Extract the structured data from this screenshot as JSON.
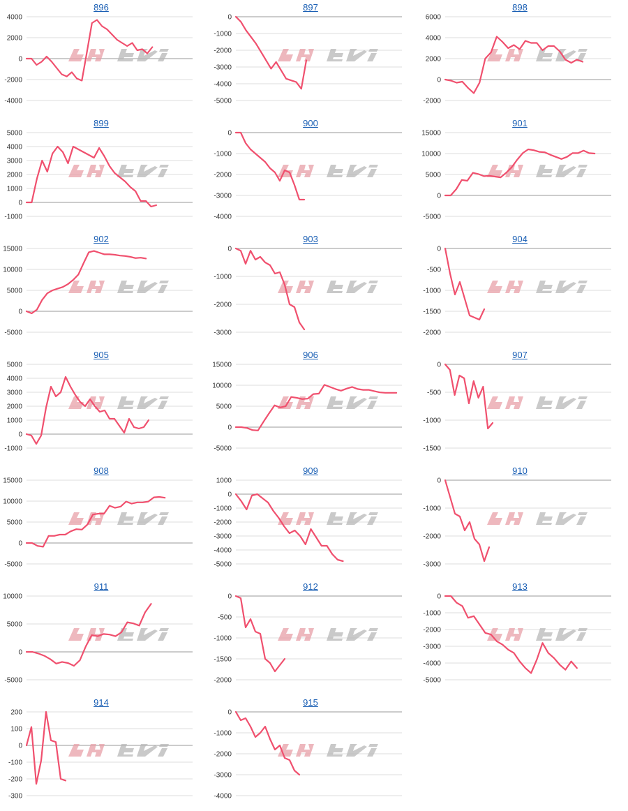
{
  "colors": {
    "line": "#f0506e",
    "grid": "#dddddd",
    "zero": "#999999",
    "title": "#1a5fb4",
    "watermark": "#e8a0a8",
    "watermark2": "#b8b8b8"
  },
  "chart_data": [
    {
      "title": "896",
      "type": "line",
      "yticks": [
        "4000",
        "2000",
        "0",
        "-2000",
        "-4000"
      ],
      "ylim": [
        -4000,
        4000
      ],
      "n": 34,
      "values": [
        0,
        0,
        -600,
        -300,
        200,
        -300,
        -900,
        -1500,
        -1700,
        -1300,
        -1900,
        -2100,
        600,
        3400,
        3700,
        3100,
        2800,
        2300,
        1800,
        1500,
        1200,
        1500,
        800,
        900,
        500,
        1100
      ]
    },
    {
      "title": "897",
      "type": "line",
      "yticks": [
        "0",
        "-1000",
        "-2000",
        "-3000",
        "-4000",
        "-5000"
      ],
      "ylim": [
        -5000,
        0
      ],
      "n": 34,
      "values": [
        0,
        -300,
        -800,
        -1200,
        -1600,
        -2100,
        -2600,
        -3100,
        -2700,
        -3200,
        -3700,
        -3800,
        -3900,
        -4300,
        -2600
      ]
    },
    {
      "title": "898",
      "type": "line",
      "yticks": [
        "6000",
        "4000",
        "2000",
        "0",
        "-2000"
      ],
      "ylim": [
        -2000,
        6000
      ],
      "n": 30,
      "values": [
        0,
        -100,
        -300,
        -200,
        -800,
        -1300,
        -300,
        2000,
        2600,
        4100,
        3600,
        3000,
        3300,
        2900,
        3700,
        3500,
        3500,
        2800,
        3200,
        3200,
        2700,
        1900,
        1600,
        1900,
        1700
      ]
    },
    {
      "title": "899",
      "type": "line",
      "yticks": [
        "5000",
        "4000",
        "3000",
        "2000",
        "1000",
        "0",
        "-1000"
      ],
      "ylim": [
        -1000,
        5000
      ],
      "n": 33,
      "values": [
        0,
        0,
        1700,
        3000,
        2200,
        3500,
        4000,
        3600,
        2800,
        4000,
        3800,
        3600,
        3400,
        3200,
        3900,
        3300,
        2600,
        2100,
        1800,
        1500,
        1100,
        800,
        100,
        100,
        -300,
        -200
      ]
    },
    {
      "title": "900",
      "type": "line",
      "yticks": [
        "0",
        "-1000",
        "-2000",
        "-3000",
        "-4000"
      ],
      "ylim": [
        -4000,
        0
      ],
      "n": 35,
      "values": [
        0,
        0,
        -500,
        -800,
        -1000,
        -1200,
        -1400,
        -1700,
        -1900,
        -2300,
        -1800,
        -1900,
        -2500,
        -3200,
        -3200
      ]
    },
    {
      "title": "901",
      "type": "line",
      "yticks": [
        "15000",
        "10000",
        "5000",
        "0",
        "-5000"
      ],
      "ylim": [
        -5000,
        15000
      ],
      "n": 31,
      "values": [
        0,
        0,
        1500,
        3700,
        3500,
        5400,
        5100,
        4600,
        4700,
        4500,
        4300,
        5400,
        6700,
        8500,
        10100,
        11000,
        10800,
        10400,
        10300,
        9700,
        9200,
        8700,
        9200,
        10100,
        10100,
        10700,
        10100,
        10000
      ]
    },
    {
      "title": "902",
      "type": "line",
      "yticks": [
        "15000",
        "10000",
        "5000",
        "0",
        "-5000"
      ],
      "ylim": [
        -5000,
        15000
      ],
      "n": 33,
      "values": [
        0,
        -500,
        400,
        2700,
        4300,
        5000,
        5400,
        5800,
        6500,
        7500,
        8800,
        11500,
        14100,
        14400,
        14000,
        13600,
        13600,
        13500,
        13300,
        13200,
        13000,
        12700,
        12800,
        12600
      ]
    },
    {
      "title": "903",
      "type": "line",
      "yticks": [
        "0",
        "-1000",
        "-2000",
        "-3000"
      ],
      "ylim": [
        -3000,
        0
      ],
      "n": 35,
      "values": [
        0,
        -80,
        -550,
        -80,
        -400,
        -300,
        -500,
        -600,
        -900,
        -850,
        -1300,
        -2000,
        -2100,
        -2650,
        -2900
      ]
    },
    {
      "title": "904",
      "type": "line",
      "yticks": [
        "0",
        "-500",
        "-1000",
        "-1500",
        "-2000"
      ],
      "ylim": [
        -2000,
        0
      ],
      "n": 35,
      "values": [
        0,
        -600,
        -1100,
        -800,
        -1200,
        -1600,
        -1650,
        -1700,
        -1450
      ]
    },
    {
      "title": "905",
      "type": "line",
      "yticks": [
        "5000",
        "4000",
        "3000",
        "2000",
        "1000",
        "0",
        "-1000"
      ],
      "ylim": [
        -1000,
        5000
      ],
      "n": 35,
      "values": [
        0,
        -100,
        -700,
        -100,
        1900,
        3400,
        2700,
        3000,
        4100,
        3400,
        2800,
        2300,
        2000,
        2500,
        2000,
        1600,
        1700,
        1100,
        1100,
        600,
        100,
        1100,
        500,
        400,
        500,
        1000
      ]
    },
    {
      "title": "906",
      "type": "line",
      "yticks": [
        "15000",
        "10000",
        "5000",
        "0",
        "-5000"
      ],
      "ylim": [
        -5000,
        15000
      ],
      "n": 31,
      "values": [
        0,
        0,
        -200,
        -700,
        -800,
        1300,
        3300,
        5200,
        4700,
        5000,
        7200,
        7000,
        6700,
        6800,
        7900,
        8000,
        10100,
        9600,
        9100,
        8700,
        9200,
        9600,
        9100,
        8900,
        8900,
        8600,
        8300,
        8200,
        8200,
        8200
      ]
    },
    {
      "title": "907",
      "type": "line",
      "yticks": [
        "0",
        "-500",
        "-1000",
        "-1500"
      ],
      "ylim": [
        -1500,
        0
      ],
      "n": 36,
      "values": [
        0,
        -100,
        -550,
        -200,
        -250,
        -700,
        -300,
        -600,
        -400,
        -1150,
        -1050
      ]
    },
    {
      "title": "908",
      "type": "line",
      "yticks": [
        "15000",
        "10000",
        "5000",
        "0",
        "-5000"
      ],
      "ylim": [
        -5000,
        15000
      ],
      "n": 31,
      "values": [
        0,
        0,
        -700,
        -900,
        1700,
        1700,
        2000,
        2000,
        2800,
        3300,
        3200,
        4400,
        6800,
        7000,
        7000,
        8900,
        8400,
        8700,
        9900,
        9400,
        9700,
        9700,
        9900,
        10900,
        11000,
        10800
      ]
    },
    {
      "title": "909",
      "type": "line",
      "yticks": [
        "1000",
        "0",
        "-1000",
        "-2000",
        "-3000",
        "-4000",
        "-5000"
      ],
      "ylim": [
        -5000,
        1000
      ],
      "n": 32,
      "values": [
        0,
        -500,
        -1100,
        -100,
        0,
        -300,
        -600,
        -1200,
        -1700,
        -2300,
        -2800,
        -2600,
        -3000,
        -3600,
        -2500,
        -3100,
        -3700,
        -3700,
        -4300,
        -4700,
        -4800
      ]
    },
    {
      "title": "910",
      "type": "line",
      "yticks": [
        "0",
        "-1000",
        "-2000",
        "-3000"
      ],
      "ylim": [
        -3000,
        0
      ],
      "n": 35,
      "values": [
        0,
        -600,
        -1200,
        -1300,
        -1800,
        -1500,
        -2100,
        -2300,
        -2900,
        -2400
      ]
    },
    {
      "title": "911",
      "type": "line",
      "yticks": [
        "10000",
        "5000",
        "0",
        "-5000"
      ],
      "ylim": [
        -5000,
        10000
      ],
      "n": 29,
      "values": [
        0,
        0,
        -300,
        -700,
        -1300,
        -2100,
        -1800,
        -2000,
        -2500,
        -1500,
        1000,
        3000,
        2800,
        3200,
        3100,
        2800,
        3500,
        5300,
        5100,
        4700,
        7100,
        8600
      ]
    },
    {
      "title": "912",
      "type": "line",
      "yticks": [
        "0",
        "-500",
        "-1000",
        "-1500",
        "-2000"
      ],
      "ylim": [
        -2000,
        0
      ],
      "n": 35,
      "values": [
        0,
        -50,
        -750,
        -550,
        -850,
        -900,
        -1500,
        -1600,
        -1800,
        -1650,
        -1500
      ]
    },
    {
      "title": "913",
      "type": "line",
      "yticks": [
        "0",
        "-1000",
        "-2000",
        "-3000",
        "-4000",
        "-5000"
      ],
      "ylim": [
        -5000,
        0
      ],
      "n": 30,
      "values": [
        0,
        0,
        -400,
        -600,
        -1300,
        -1200,
        -1700,
        -2200,
        -2300,
        -2700,
        -2900,
        -3200,
        -3400,
        -3900,
        -4300,
        -4600,
        -3800,
        -2800,
        -3400,
        -3700,
        -4100,
        -4400,
        -3900,
        -4300
      ]
    },
    {
      "title": "914",
      "type": "line",
      "yticks": [
        "200",
        "100",
        "0",
        "-100",
        "-200",
        "-300"
      ],
      "ylim": [
        -300,
        200
      ],
      "n": 35,
      "values": [
        0,
        110,
        -230,
        -90,
        200,
        30,
        20,
        -200,
        -210
      ]
    },
    {
      "title": "915",
      "type": "line",
      "yticks": [
        "0",
        "-1000",
        "-2000",
        "-3000",
        "-4000"
      ],
      "ylim": [
        -4000,
        0
      ],
      "n": 35,
      "values": [
        0,
        -400,
        -300,
        -700,
        -1200,
        -1000,
        -700,
        -1300,
        -1800,
        -1600,
        -2200,
        -2300,
        -2800,
        -3000
      ]
    }
  ]
}
